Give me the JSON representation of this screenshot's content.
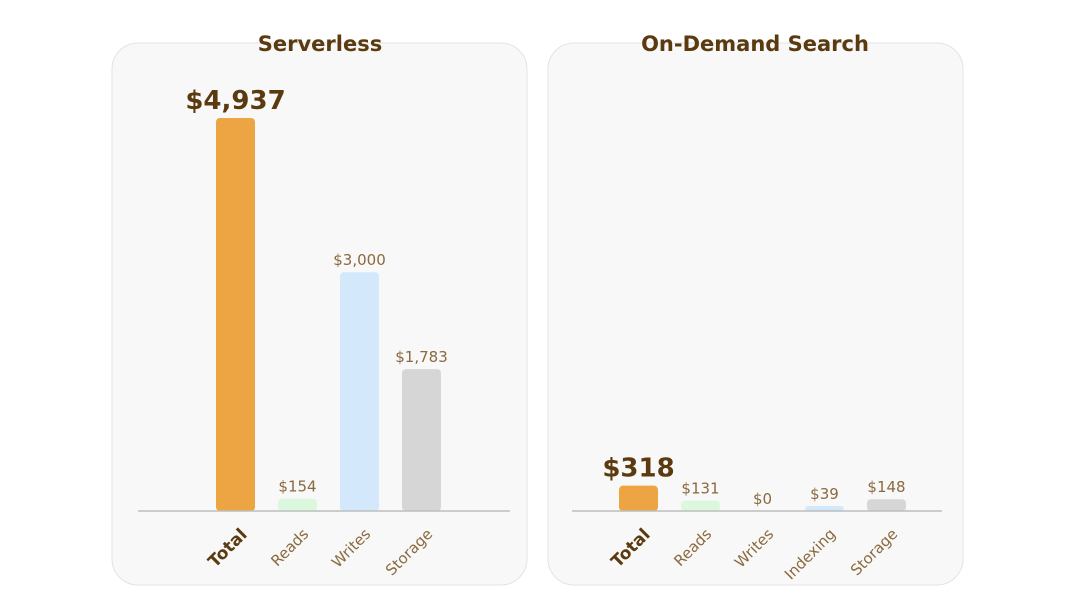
{
  "colors": {
    "total": "#eca542",
    "reads": "#dbf7dd",
    "writes": "#d3e8fb",
    "indexing": "#d3e8fb",
    "storage": "#d6d6d6"
  },
  "chart_data": [
    {
      "type": "bar",
      "title": "Serverless",
      "categories": [
        "Total",
        "Reads",
        "Writes",
        "Storage"
      ],
      "keys": [
        "total",
        "reads",
        "writes",
        "storage"
      ],
      "values": [
        4937,
        154,
        3000,
        1783
      ],
      "value_labels": [
        "$4,937",
        "$154",
        "$3,000",
        "$1,783"
      ],
      "ylim": [
        0,
        4937
      ],
      "grid": false
    },
    {
      "type": "bar",
      "title": "On-Demand Search",
      "categories": [
        "Total",
        "Reads",
        "Writes",
        "Indexing",
        "Storage"
      ],
      "keys": [
        "total",
        "reads",
        "writes",
        "indexing",
        "storage"
      ],
      "values": [
        318,
        131,
        0,
        39,
        148
      ],
      "value_labels": [
        "$318",
        "$131",
        "$0",
        "$39",
        "$148"
      ],
      "ylim": [
        0,
        4937
      ],
      "grid": false
    }
  ]
}
